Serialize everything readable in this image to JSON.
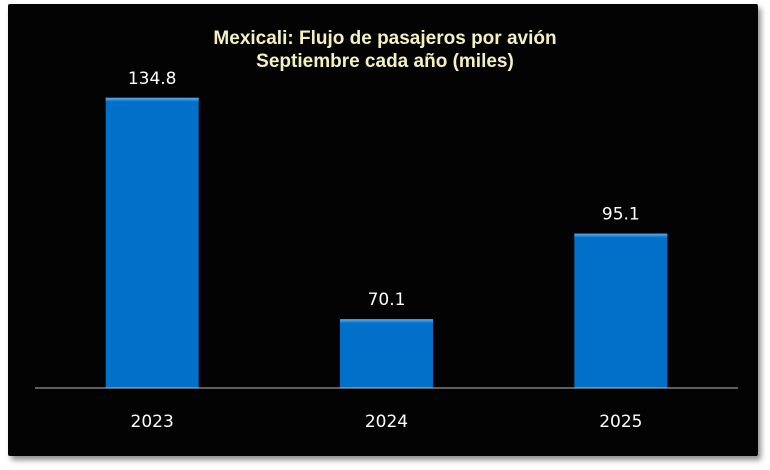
{
  "chart_data": {
    "type": "bar",
    "title": "Mexicali: Flujo de pasajeros por avión",
    "subtitle": "Septiembre cada año (miles)",
    "categories": [
      "2023",
      "2024",
      "2025"
    ],
    "values": [
      134.8,
      70.1,
      95.1
    ],
    "data_labels": [
      "134.8",
      "70.1",
      "95.1"
    ],
    "ylim": [
      50,
      140
    ],
    "grid": false,
    "legend": "none",
    "colors": {
      "bar": "#0070c8",
      "background": "#030303",
      "title": "#f5f0c0",
      "text": "#ffffff"
    }
  }
}
